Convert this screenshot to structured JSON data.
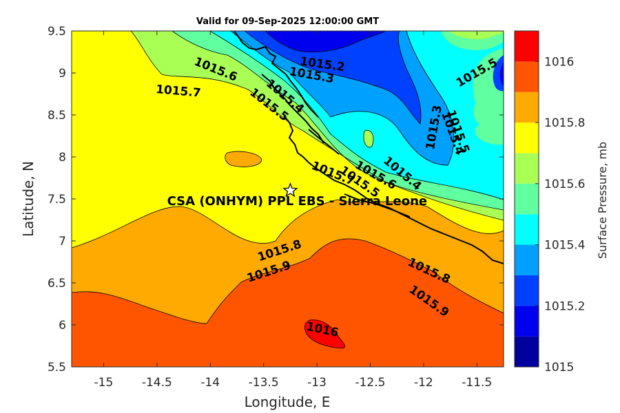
{
  "title": "Valid for 09-Sep-2025 12:00:00 GMT",
  "x_axis": {
    "label": "Longitude, E",
    "ticks": [
      "-15",
      "-14.5",
      "-14",
      "-13.5",
      "-13",
      "-12.5",
      "-12",
      "-11.5"
    ],
    "tick_values": [
      -15,
      -14.5,
      -14,
      -13.5,
      -13,
      -12.5,
      -12,
      -11.5
    ],
    "range": [
      -15.3,
      -11.25
    ]
  },
  "y_axis": {
    "label": "Latitude, N",
    "ticks": [
      "5.5",
      "6",
      "6.5",
      "7",
      "7.5",
      "8",
      "8.5",
      "9",
      "9.5"
    ],
    "tick_values": [
      5.5,
      6,
      6.5,
      7,
      7.5,
      8,
      8.5,
      9,
      9.5
    ],
    "range": [
      5.5,
      9.5
    ]
  },
  "colorbar": {
    "label": "Surface Pressure, mb",
    "ticks": [
      "1015",
      "1015.2",
      "1015.4",
      "1015.6",
      "1015.8",
      "1016"
    ],
    "tick_values": [
      1015,
      1015.2,
      1015.4,
      1015.6,
      1015.8,
      1016
    ],
    "range": [
      1015,
      1016.1
    ],
    "colors": [
      "#00009f",
      "#0000ef",
      "#0040ff",
      "#00a0ff",
      "#00ffff",
      "#60ffa0",
      "#aaff55",
      "#ffff00",
      "#ffaa00",
      "#ff5500",
      "#ff0000",
      "#aa0000"
    ]
  },
  "site": {
    "label": "CSA (ONHYM) PPL EBS  - Sierra Leone",
    "lon": -13.25,
    "lat": 7.6,
    "marker": "star-icon"
  },
  "contour_labels": [
    {
      "text": "1015.2",
      "lon": -12.95,
      "lat": 9.1,
      "angle": 8
    },
    {
      "text": "1015.3",
      "lon": -13.05,
      "lat": 8.97,
      "angle": 10
    },
    {
      "text": "1015.4",
      "lon": -13.3,
      "lat": 8.72,
      "angle": 40
    },
    {
      "text": "1015.5",
      "lon": -13.45,
      "lat": 8.62,
      "angle": 38
    },
    {
      "text": "1015.6",
      "lon": -13.95,
      "lat": 9.04,
      "angle": 22
    },
    {
      "text": "1015.7",
      "lon": -14.3,
      "lat": 8.78,
      "angle": 5
    },
    {
      "text": "1015.7",
      "lon": -12.85,
      "lat": 7.8,
      "angle": 22
    },
    {
      "text": "1015.5",
      "lon": -12.6,
      "lat": 7.7,
      "angle": 35
    },
    {
      "text": "1015.6",
      "lon": -12.45,
      "lat": 7.78,
      "angle": 30
    },
    {
      "text": "1015.4",
      "lon": -12.2,
      "lat": 7.8,
      "angle": 40
    },
    {
      "text": "1015.8",
      "lon": -13.35,
      "lat": 6.88,
      "angle": -18
    },
    {
      "text": "1015.9",
      "lon": -13.45,
      "lat": 6.63,
      "angle": -18
    },
    {
      "text": "1016",
      "lon": -12.95,
      "lat": 5.94,
      "angle": 12
    },
    {
      "text": "1015.8",
      "lon": -11.95,
      "lat": 6.64,
      "angle": 25
    },
    {
      "text": "1015.9",
      "lon": -11.95,
      "lat": 6.28,
      "angle": 35
    },
    {
      "text": "1015.3",
      "lon": -11.9,
      "lat": 8.35,
      "angle": -80
    },
    {
      "text": "1015.5",
      "lon": -11.68,
      "lat": 8.3,
      "angle": 70
    },
    {
      "text": "1015.4",
      "lon": -11.73,
      "lat": 8.28,
      "angle": 70
    },
    {
      "text": "1015.5",
      "lon": -11.5,
      "lat": 9.0,
      "angle": -30
    }
  ]
}
